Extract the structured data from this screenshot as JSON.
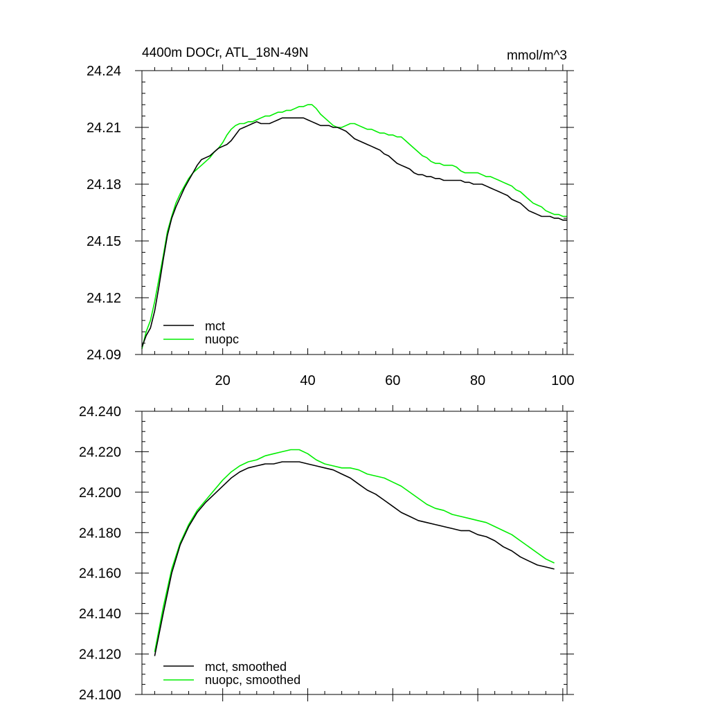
{
  "colors": {
    "mct": "#000000",
    "nuopc": "#00ee00",
    "axis": "#000000",
    "background": "#ffffff"
  },
  "chart_data": [
    {
      "type": "line",
      "title_left": "4400m DOCr, ATL_18N-49N",
      "title_right": "mmol/m^3",
      "xlim": [
        1,
        101
      ],
      "ylim": [
        24.09,
        24.24
      ],
      "xticks": [
        20,
        40,
        60,
        80,
        100
      ],
      "xtick_labels": [
        "20",
        "40",
        "60",
        "80",
        "100"
      ],
      "yticks": [
        24.09,
        24.12,
        24.15,
        24.18,
        24.21,
        24.24
      ],
      "ytick_labels": [
        "24.09",
        "24.12",
        "24.15",
        "24.18",
        "24.21",
        "24.24"
      ],
      "legend_position": "bottom-left",
      "series": [
        {
          "name": "mct",
          "color": "#000000",
          "x": [
            1,
            2,
            3,
            4,
            5,
            6,
            7,
            8,
            9,
            10,
            11,
            12,
            13,
            14,
            15,
            16,
            17,
            18,
            19,
            20,
            21,
            22,
            23,
            24,
            25,
            26,
            27,
            28,
            29,
            30,
            31,
            32,
            33,
            34,
            35,
            36,
            37,
            38,
            39,
            40,
            41,
            42,
            43,
            44,
            45,
            46,
            47,
            48,
            49,
            50,
            51,
            52,
            53,
            54,
            55,
            56,
            57,
            58,
            59,
            60,
            61,
            62,
            63,
            64,
            65,
            66,
            67,
            68,
            69,
            70,
            71,
            72,
            73,
            74,
            75,
            76,
            77,
            78,
            79,
            80,
            81,
            82,
            83,
            84,
            85,
            86,
            87,
            88,
            89,
            90,
            91,
            92,
            93,
            94,
            95,
            96,
            97,
            98,
            99,
            100,
            101
          ],
          "values": [
            24.094,
            24.1,
            24.104,
            24.113,
            24.126,
            24.14,
            24.153,
            24.162,
            24.168,
            24.173,
            24.178,
            24.182,
            24.186,
            24.19,
            24.193,
            24.194,
            24.195,
            24.197,
            24.199,
            24.2,
            24.201,
            24.203,
            24.206,
            24.209,
            24.21,
            24.211,
            24.212,
            24.213,
            24.212,
            24.212,
            24.212,
            24.213,
            24.214,
            24.215,
            24.215,
            24.215,
            24.215,
            24.215,
            24.215,
            24.214,
            24.213,
            24.212,
            24.211,
            24.211,
            24.211,
            24.21,
            24.21,
            24.209,
            24.208,
            24.206,
            24.204,
            24.203,
            24.202,
            24.201,
            24.2,
            24.199,
            24.198,
            24.196,
            24.195,
            24.193,
            24.191,
            24.19,
            24.189,
            24.188,
            24.186,
            24.185,
            24.185,
            24.184,
            24.184,
            24.183,
            24.183,
            24.182,
            24.182,
            24.182,
            24.182,
            24.182,
            24.181,
            24.181,
            24.18,
            24.18,
            24.18,
            24.179,
            24.178,
            24.177,
            24.176,
            24.175,
            24.174,
            24.172,
            24.171,
            24.17,
            24.168,
            24.166,
            24.165,
            24.164,
            24.163,
            24.163,
            24.163,
            24.162,
            24.162,
            24.161,
            24.161
          ]
        },
        {
          "name": "nuopc",
          "color": "#00ee00",
          "x": [
            1,
            2,
            3,
            4,
            5,
            6,
            7,
            8,
            9,
            10,
            11,
            12,
            13,
            14,
            15,
            16,
            17,
            18,
            19,
            20,
            21,
            22,
            23,
            24,
            25,
            26,
            27,
            28,
            29,
            30,
            31,
            32,
            33,
            34,
            35,
            36,
            37,
            38,
            39,
            40,
            41,
            42,
            43,
            44,
            45,
            46,
            47,
            48,
            49,
            50,
            51,
            52,
            53,
            54,
            55,
            56,
            57,
            58,
            59,
            60,
            61,
            62,
            63,
            64,
            65,
            66,
            67,
            68,
            69,
            70,
            71,
            72,
            73,
            74,
            75,
            76,
            77,
            78,
            79,
            80,
            81,
            82,
            83,
            84,
            85,
            86,
            87,
            88,
            89,
            90,
            91,
            92,
            93,
            94,
            95,
            96,
            97,
            98,
            99,
            100,
            101
          ],
          "values": [
            24.093,
            24.102,
            24.108,
            24.118,
            24.13,
            24.142,
            24.155,
            24.163,
            24.17,
            24.175,
            24.179,
            24.183,
            24.186,
            24.188,
            24.19,
            24.192,
            24.194,
            24.197,
            24.199,
            24.202,
            24.206,
            24.209,
            24.211,
            24.212,
            24.212,
            24.213,
            24.213,
            24.214,
            24.215,
            24.216,
            24.216,
            24.217,
            24.218,
            24.218,
            24.219,
            24.219,
            24.22,
            24.221,
            24.221,
            24.222,
            24.222,
            24.22,
            24.217,
            24.215,
            24.213,
            24.211,
            24.21,
            24.21,
            24.211,
            24.212,
            24.212,
            24.211,
            24.21,
            24.209,
            24.209,
            24.208,
            24.207,
            24.207,
            24.206,
            24.206,
            24.205,
            24.205,
            24.203,
            24.201,
            24.199,
            24.197,
            24.195,
            24.194,
            24.192,
            24.191,
            24.191,
            24.19,
            24.19,
            24.19,
            24.189,
            24.187,
            24.186,
            24.186,
            24.186,
            24.186,
            24.185,
            24.184,
            24.184,
            24.183,
            24.182,
            24.181,
            24.18,
            24.179,
            24.177,
            24.176,
            24.174,
            24.172,
            24.17,
            24.169,
            24.168,
            24.166,
            24.165,
            24.164,
            24.164,
            24.163,
            24.163
          ]
        }
      ]
    },
    {
      "type": "line",
      "xlim": [
        1,
        101
      ],
      "ylim": [
        24.1,
        24.24
      ],
      "xticks": [
        20,
        40,
        60,
        80,
        100
      ],
      "yticks": [
        24.1,
        24.12,
        24.14,
        24.16,
        24.18,
        24.2,
        24.22,
        24.24
      ],
      "ytick_labels": [
        "24.100",
        "24.120",
        "24.140",
        "24.160",
        "24.180",
        "24.200",
        "24.220",
        "24.240"
      ],
      "legend_position": "bottom-left",
      "series": [
        {
          "name": "mct, smoothed",
          "color": "#000000",
          "x": [
            4,
            6,
            8,
            10,
            12,
            14,
            16,
            18,
            20,
            22,
            24,
            26,
            28,
            30,
            32,
            34,
            36,
            38,
            40,
            42,
            44,
            46,
            48,
            50,
            52,
            54,
            56,
            58,
            60,
            62,
            64,
            66,
            68,
            70,
            72,
            74,
            76,
            78,
            80,
            82,
            84,
            86,
            88,
            90,
            92,
            94,
            96,
            98
          ],
          "values": [
            24.119,
            24.14,
            24.16,
            24.174,
            24.183,
            24.19,
            24.195,
            24.199,
            24.203,
            24.207,
            24.21,
            24.212,
            24.213,
            24.214,
            24.214,
            24.215,
            24.215,
            24.215,
            24.214,
            24.213,
            24.212,
            24.211,
            24.209,
            24.207,
            24.204,
            24.201,
            24.199,
            24.196,
            24.193,
            24.19,
            24.188,
            24.186,
            24.185,
            24.184,
            24.183,
            24.182,
            24.181,
            24.181,
            24.179,
            24.178,
            24.176,
            24.173,
            24.171,
            24.168,
            24.166,
            24.164,
            24.163,
            24.162
          ]
        },
        {
          "name": "nuopc, smoothed",
          "color": "#00ee00",
          "x": [
            4,
            6,
            8,
            10,
            12,
            14,
            16,
            18,
            20,
            22,
            24,
            26,
            28,
            30,
            32,
            34,
            36,
            38,
            40,
            42,
            44,
            46,
            48,
            50,
            52,
            54,
            56,
            58,
            60,
            62,
            64,
            66,
            68,
            70,
            72,
            74,
            76,
            78,
            80,
            82,
            84,
            86,
            88,
            90,
            92,
            94,
            96,
            98
          ],
          "values": [
            24.121,
            24.143,
            24.162,
            24.175,
            24.184,
            24.191,
            24.196,
            24.201,
            24.206,
            24.21,
            24.213,
            24.215,
            24.216,
            24.218,
            24.219,
            24.22,
            24.221,
            24.221,
            24.219,
            24.216,
            24.214,
            24.213,
            24.212,
            24.212,
            24.211,
            24.209,
            24.208,
            24.207,
            24.205,
            24.203,
            24.2,
            24.197,
            24.194,
            24.192,
            24.191,
            24.189,
            24.188,
            24.187,
            24.186,
            24.185,
            24.183,
            24.181,
            24.179,
            24.176,
            24.173,
            24.17,
            24.167,
            24.165
          ]
        }
      ]
    }
  ]
}
